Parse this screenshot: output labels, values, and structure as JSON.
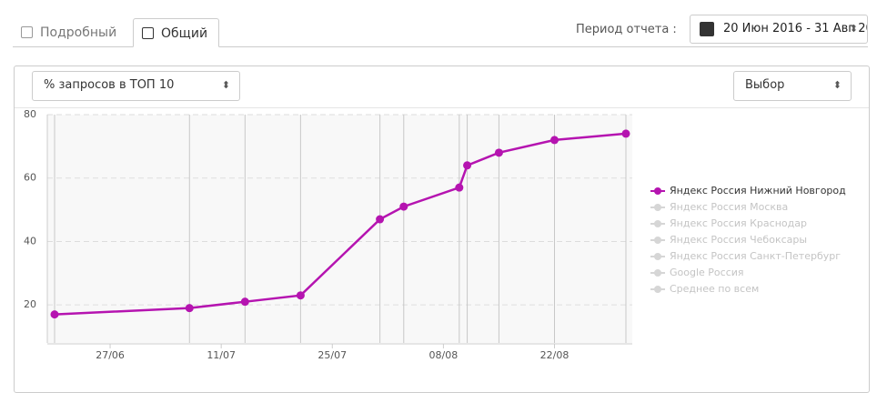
{
  "tabs": [
    {
      "label": "Подробный",
      "active": false
    },
    {
      "label": "Общий",
      "active": true
    }
  ],
  "period": {
    "label": "Период отчета :",
    "value": "20 Июн 2016 - 31 Авг 20"
  },
  "metric_select": "% запросов в ТОП 10",
  "choice_select": "Выбор",
  "chart_data": {
    "type": "line",
    "x": [
      "20/06",
      "07/07",
      "14/07",
      "21/07",
      "31/07",
      "03/08",
      "10/08",
      "11/08",
      "15/08",
      "22/08",
      "31/08"
    ],
    "series": [
      {
        "name": "Яндекс Россия Нижний Новгород",
        "color": "#b514b0",
        "values": [
          17,
          19,
          21,
          23,
          47,
          51,
          57,
          64,
          68,
          72,
          74
        ]
      }
    ],
    "hidden_series": [
      "Яндекс Россия Москва",
      "Яндекс Россия Краснодар",
      "Яндекс Россия Чебоксары",
      "Яндекс Россия Санкт-Петербург",
      "Google Россия",
      "Среднее по всем"
    ],
    "hidden_color": "#d6d6d6",
    "xlim": [
      "20/06",
      "31/08"
    ],
    "xticks": [
      "27/06",
      "11/07",
      "25/07",
      "08/08",
      "22/08"
    ],
    "ylim": [
      8,
      80
    ],
    "yticks": [
      20,
      40,
      60,
      80
    ],
    "grid": true
  }
}
